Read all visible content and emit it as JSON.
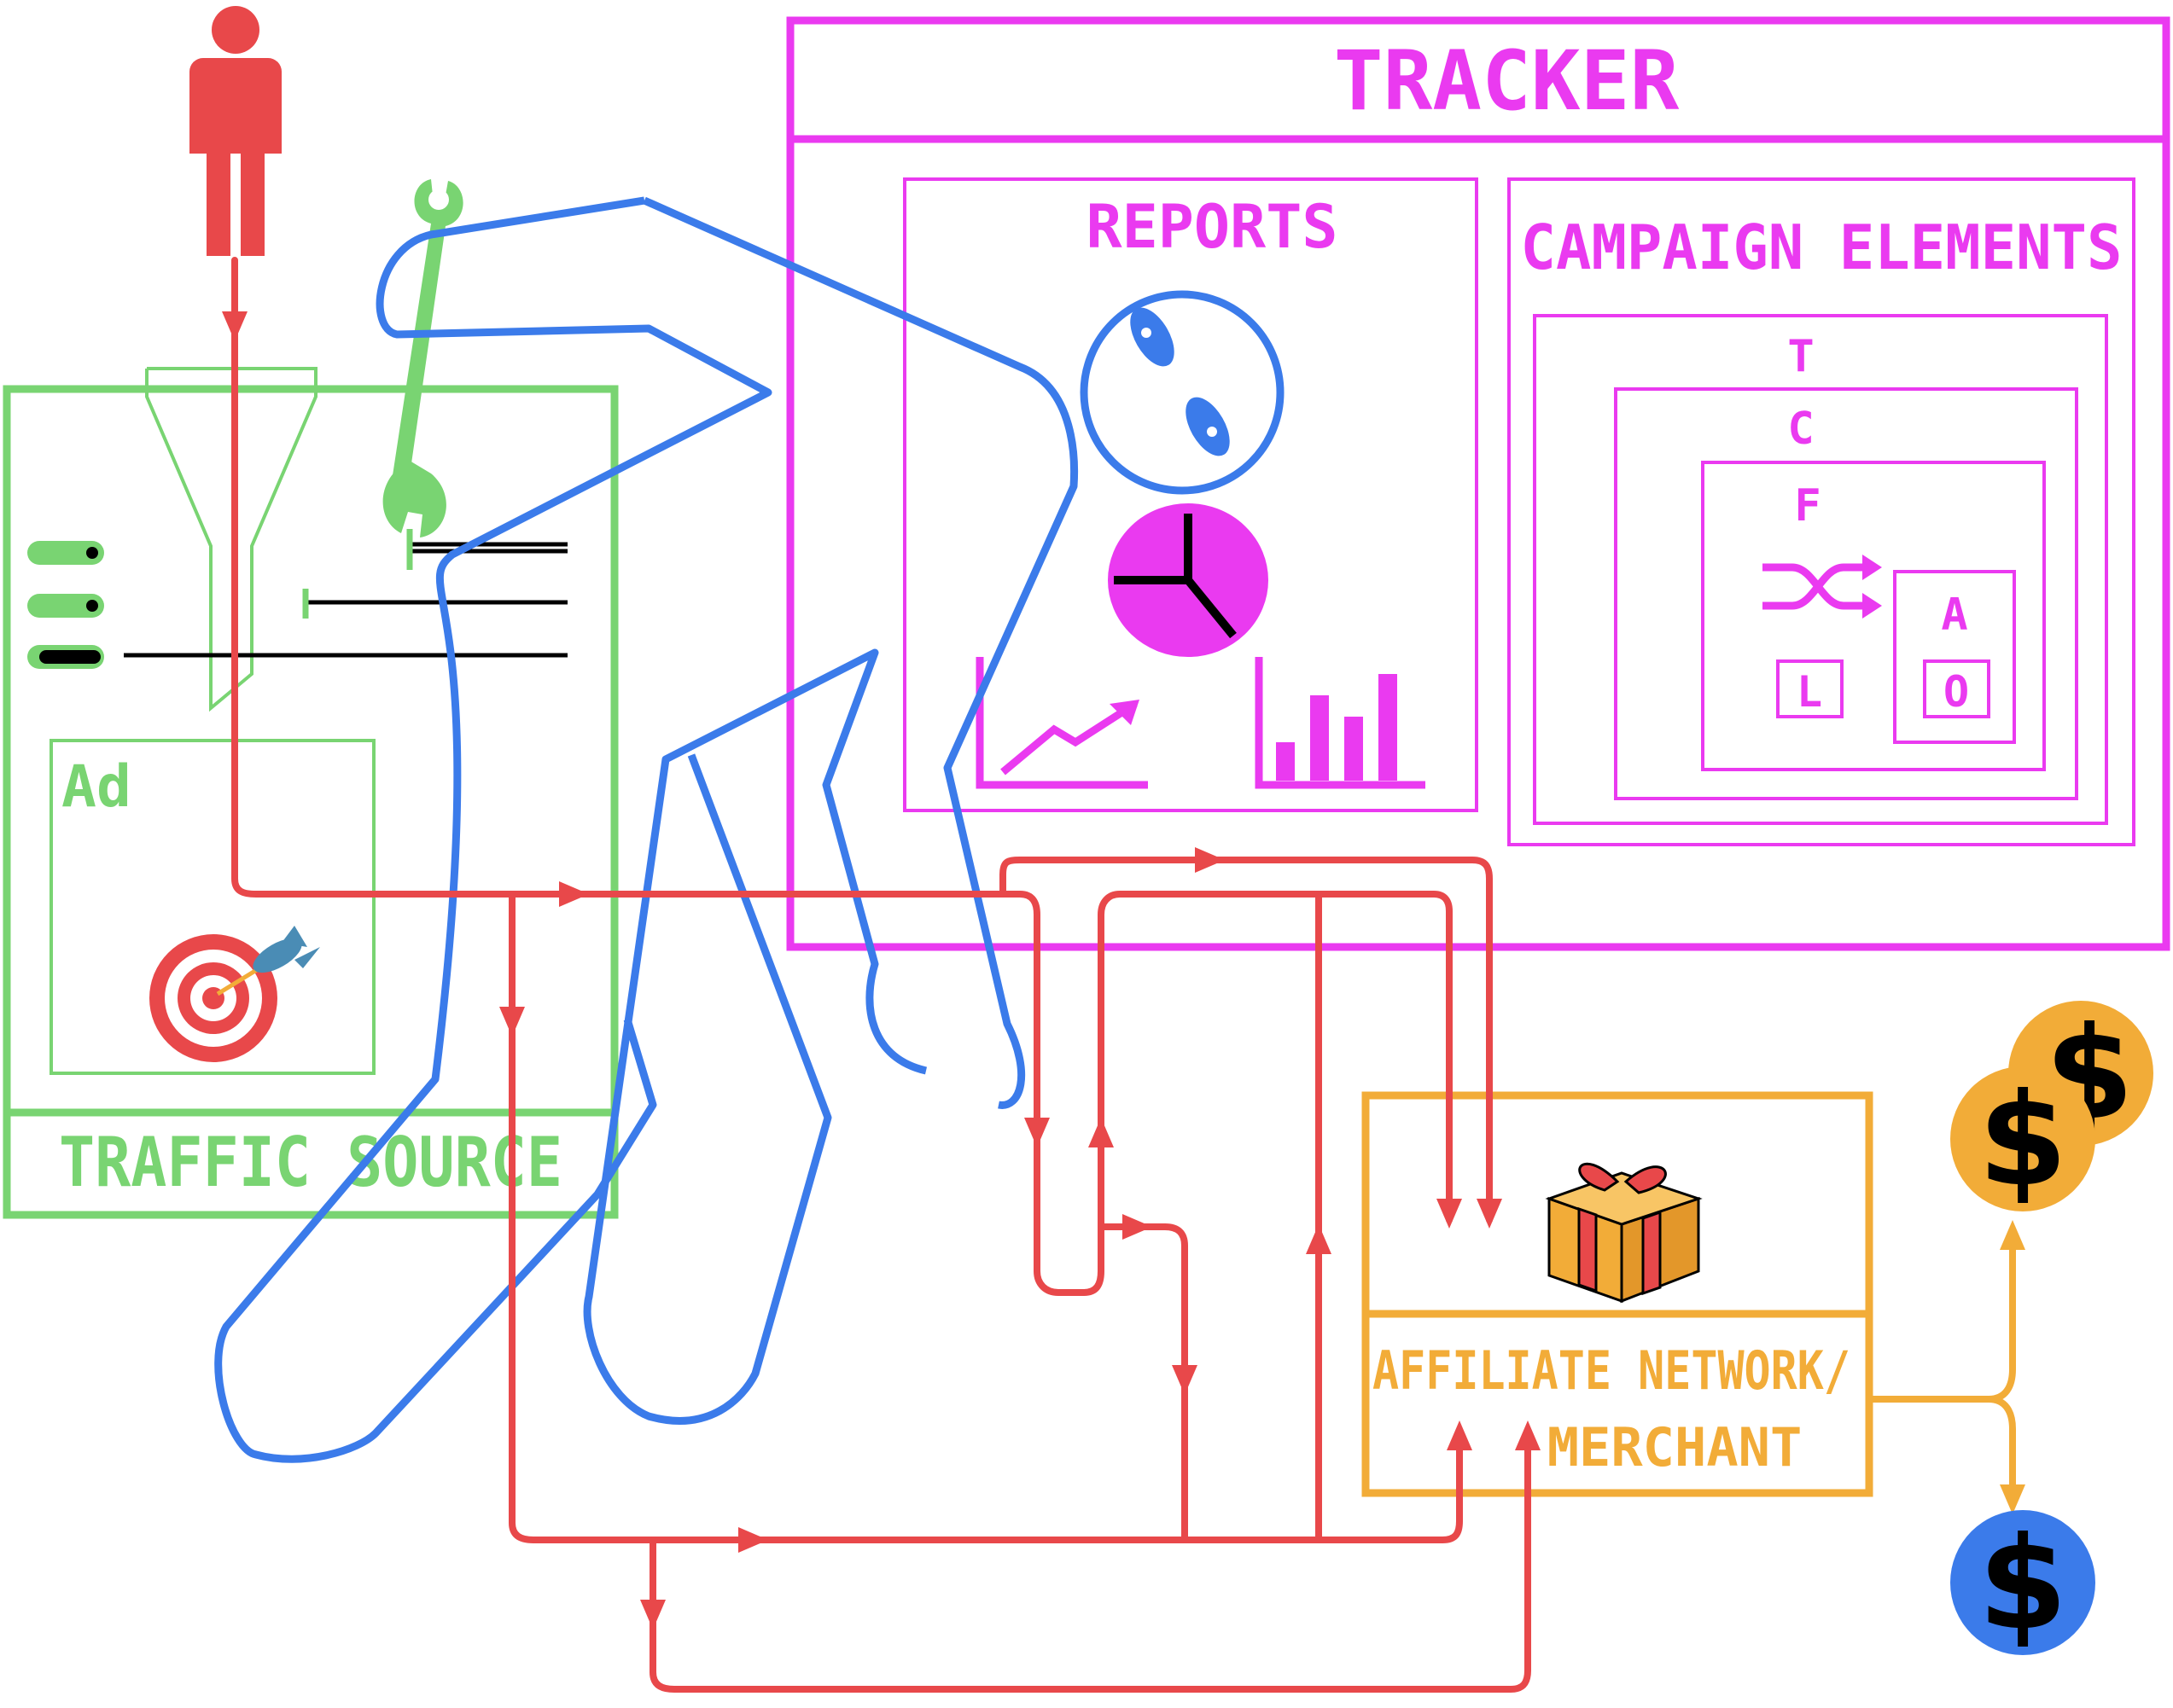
{
  "labels": {
    "tracker": "TRACKER",
    "reports": "REPORTS",
    "campaign_elements": "CAMPAIGN ELEMENTS",
    "t": "T",
    "c": "C",
    "f": "F",
    "l": "L",
    "a": "A",
    "o": "O",
    "ad": "Ad",
    "traffic_source": "TRAFFIC SOURCE",
    "affiliate_line1": "AFFILIATE NETWORK/",
    "affiliate_line2": "MERCHANT",
    "dollar": "$"
  },
  "colors": {
    "green": "#79d472",
    "magenta": "#ea3af0",
    "blue": "#3b7bea",
    "red": "#e8484a",
    "orange": "#f2ac38",
    "black": "#000000"
  }
}
